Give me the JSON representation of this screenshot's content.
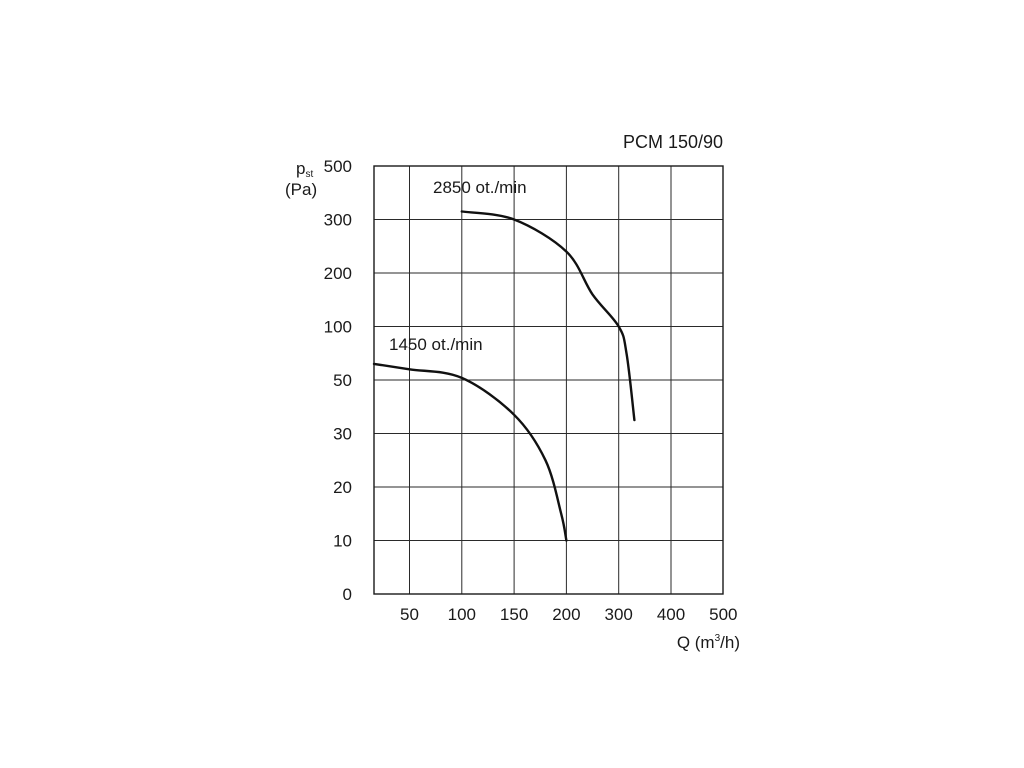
{
  "chart_data": {
    "type": "line",
    "title": "PCM 150/90",
    "ylabel_main": "p",
    "ylabel_sub": "st",
    "ylabel_unit": "(Pa)",
    "xlabel_main": "Q (m",
    "xlabel_sup": "3",
    "xlabel_end": "/h)",
    "x_ticks": [
      "50",
      "100",
      "150",
      "200",
      "300",
      "400",
      "500"
    ],
    "y_ticks": [
      "0",
      "10",
      "20",
      "30",
      "50",
      "100",
      "200",
      "300",
      "500"
    ],
    "grid": true,
    "series": [
      {
        "name": "2850 ot./min",
        "points": [
          [
            100,
            330
          ],
          [
            150,
            300
          ],
          [
            200,
            240
          ],
          [
            250,
            160
          ],
          [
            300,
            100
          ],
          [
            315,
            75
          ],
          [
            330,
            35
          ]
        ]
      },
      {
        "name": "1450 ot./min",
        "points": [
          [
            0,
            65
          ],
          [
            50,
            60
          ],
          [
            100,
            52
          ],
          [
            150,
            37
          ],
          [
            180,
            25
          ],
          [
            195,
            15
          ],
          [
            200,
            10
          ]
        ]
      }
    ]
  }
}
